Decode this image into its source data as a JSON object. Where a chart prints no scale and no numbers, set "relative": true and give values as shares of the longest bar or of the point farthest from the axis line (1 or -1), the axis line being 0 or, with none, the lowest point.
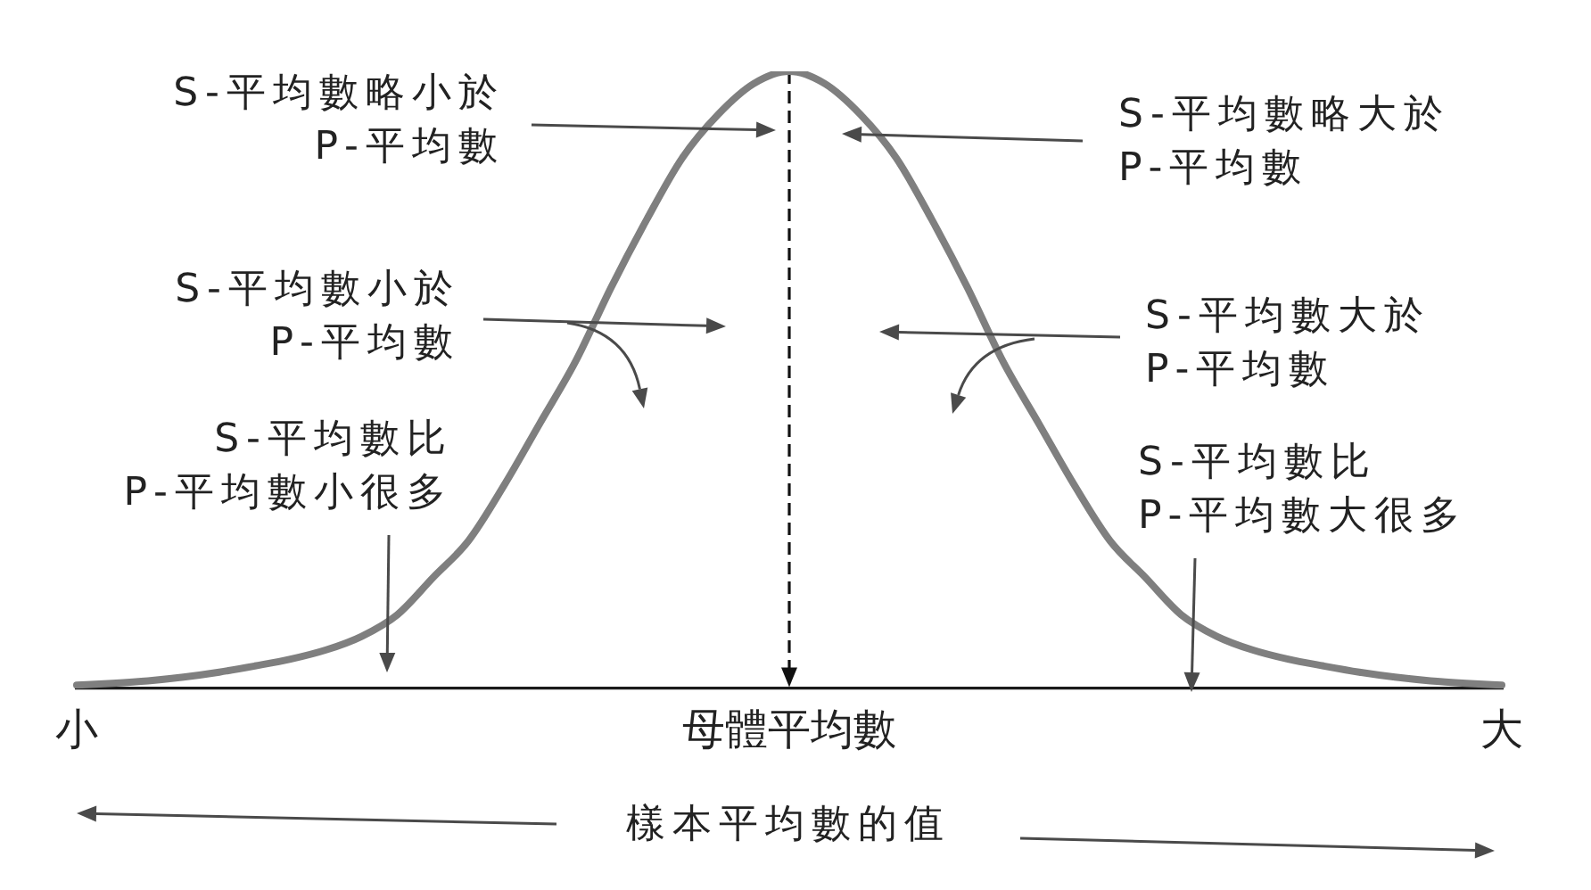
{
  "chart_data": {
    "type": "line",
    "relative": true,
    "categories": [
      "小",
      null,
      null,
      null,
      null,
      null,
      null,
      null,
      null,
      null,
      null,
      null,
      null,
      null,
      null,
      null,
      null,
      null,
      null,
      null,
      "母體平均數",
      null,
      null,
      null,
      null,
      null,
      null,
      null,
      null,
      null,
      null,
      null,
      null,
      null,
      null,
      null,
      null,
      null,
      null,
      null,
      "大"
    ],
    "series": [
      {
        "color": "#7f7f7f",
        "values": [
          0.006,
          0.009,
          0.013,
          0.019,
          0.027,
          0.037,
          0.048,
          0.063,
          0.085,
          0.12,
          0.18,
          0.24,
          0.33,
          0.43,
          0.53,
          0.65,
          0.76,
          0.86,
          0.93,
          0.98,
          1,
          0.98,
          0.93,
          0.86,
          0.76,
          0.65,
          0.53,
          0.43,
          0.33,
          0.24,
          0.18,
          0.12,
          0.085,
          0.063,
          0.048,
          0.037,
          0.027,
          0.019,
          0.013,
          0.009,
          0.006
        ]
      }
    ],
    "xlabel": "樣本平均數的值",
    "ref_lines": [
      {
        "axis": "x",
        "value": "母體平均數",
        "color": "#111111",
        "line_style": "dashed"
      }
    ],
    "annotations": [
      "S-平均數略小於\nP-平均數",
      "S-平均數略大於\nP-平均數",
      "S-平均數小於\nP-平均數",
      "S-平均數大於\nP-平均數",
      "S-平均數比\nP-平均數小很多",
      "S-平均數比\nP-平均數大很多"
    ],
    "marker": "none"
  }
}
